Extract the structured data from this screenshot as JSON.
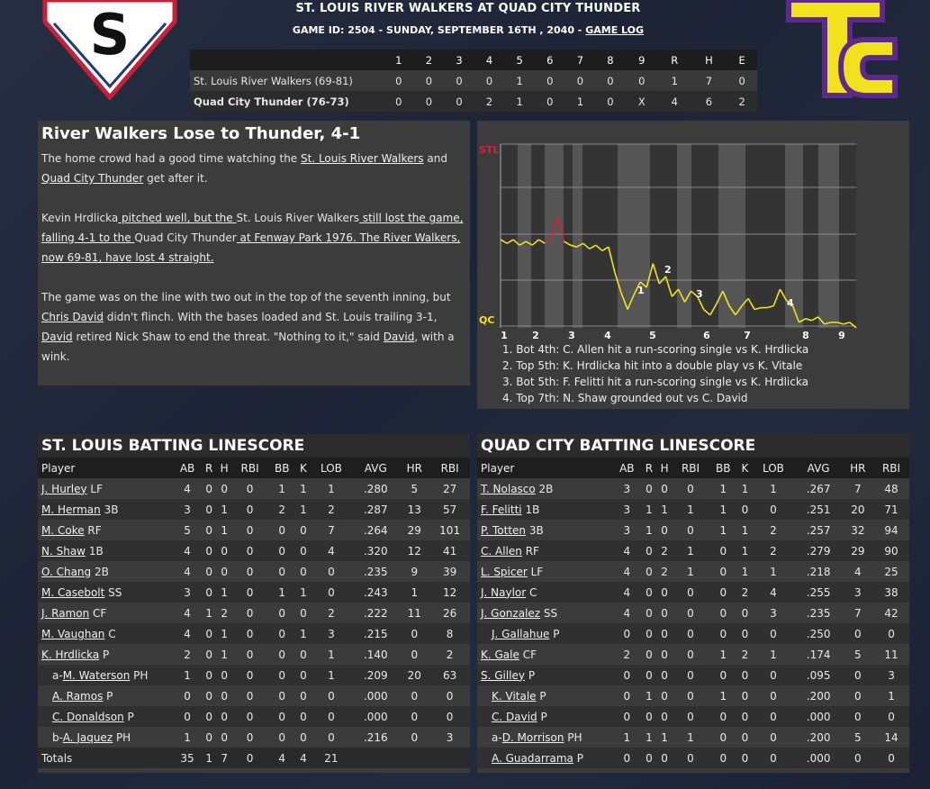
{
  "header": {
    "title": "ST. LOUIS RIVER WALKERS AT QUAD CITY THUNDER",
    "game_info": "GAME ID: 2504 - SUNDAY, SEPTEMBER 16TH , 2040 - ",
    "game_log_link": "GAME LOG",
    "home_logo_letter": "S",
    "away_logo_letters": "TC"
  },
  "linescore": {
    "columns": [
      "1",
      "2",
      "3",
      "4",
      "5",
      "6",
      "7",
      "8",
      "9",
      "R",
      "H",
      "E"
    ],
    "rows": [
      {
        "team": "St. Louis River Walkers (69-81)",
        "cells": [
          "0",
          "0",
          "0",
          "0",
          "1",
          "0",
          "0",
          "0",
          "0",
          "1",
          "7",
          "0"
        ]
      },
      {
        "team": "Quad City Thunder (76-73)",
        "cells": [
          "0",
          "0",
          "0",
          "2",
          "1",
          "0",
          "1",
          "0",
          "X",
          "4",
          "6",
          "2"
        ]
      }
    ]
  },
  "recap": {
    "headline": "River Walkers Lose to Thunder, 4-1",
    "p1": [
      "The home crowd had a good time watching the ",
      "St. Louis River Walkers",
      " and ",
      "Quad City Thunder",
      " get after it."
    ],
    "p2": [
      "Kevin Hrdlicka",
      " pitched well, but the ",
      "St. Louis River Walkers",
      " still lost the game, falling 4-1 to the ",
      "Quad City Thunder",
      " at Fenway Park 1976. The River Walkers, now 69-81, have lost 4 straight."
    ],
    "p3": [
      "The game was on the line with two out in the top of the seventh inning, but ",
      "Chris David",
      " didn't flinch. With the bases loaded and St. Louis trailing 3-1, ",
      "David",
      " retired Nick Shaw to end the threat. \"Nothing to it,\" said ",
      "David",
      ", with a wink."
    ]
  },
  "chart_data": {
    "type": "line",
    "title": "",
    "y_top_label": "STL",
    "y_bottom_label": "QC",
    "x_ticks": [
      "1",
      "2",
      "3",
      "4",
      "5",
      "6",
      "7",
      "8",
      "9"
    ],
    "series": [
      {
        "values": [
          0.48,
          0.46,
          0.48,
          0.45,
          0.47,
          0.45,
          0.48,
          0.46,
          0.49,
          0.6,
          0.47,
          0.45,
          0.44,
          0.46,
          0.43,
          0.45,
          0.42,
          0.44,
          0.3,
          0.19,
          0.1,
          0.18,
          0.25,
          0.22,
          0.35,
          0.24,
          0.28,
          0.17,
          0.21,
          0.14,
          0.2,
          0.17,
          0.1,
          0.07,
          0.13,
          0.2,
          0.12,
          0.07,
          0.12,
          0.16,
          0.1,
          0.11,
          0.11,
          0.12,
          0.21,
          0.15,
          0.12,
          0.03,
          0.05,
          0.04,
          0.06,
          0.02,
          0.03,
          0.03,
          0.02,
          0.03,
          0.0
        ]
      }
    ],
    "annotations": [
      "1",
      "2",
      "3",
      "4"
    ],
    "notes": [
      "1. Bot 4th: C. Allen hit a run-scoring single vs K. Hrdlicka",
      "2. Top 5th: K. Hrdlicka hit into a double play vs K. Vitale",
      "3. Bot 5th: F. Felitti hit a run-scoring single vs K. Hrdlicka",
      "4. Top 7th: N. Shaw grounded out vs C. David"
    ],
    "colors": {
      "stl": "#d8213a",
      "qc": "#f2e21d"
    }
  },
  "stl": {
    "title": "ST. LOUIS BATTING LINESCORE",
    "columns": [
      "Player",
      "AB",
      "R",
      "H",
      "RBI",
      "BB",
      "K",
      "LOB",
      "AVG",
      "HR",
      "RBI"
    ],
    "rows": [
      {
        "prefix": "",
        "name": "J. Hurley",
        "pos": " LF",
        "sub": false,
        "s": [
          "4",
          "0",
          "0",
          "0",
          "1",
          "1",
          "1",
          ".280",
          "5",
          "27"
        ]
      },
      {
        "prefix": "",
        "name": "M. Herman",
        "pos": " 3B",
        "sub": false,
        "s": [
          "3",
          "0",
          "1",
          "0",
          "2",
          "1",
          "2",
          ".287",
          "13",
          "57"
        ]
      },
      {
        "prefix": "",
        "name": "M. Coke",
        "pos": " RF",
        "sub": false,
        "s": [
          "5",
          "0",
          "1",
          "0",
          "0",
          "0",
          "7",
          ".264",
          "29",
          "101"
        ]
      },
      {
        "prefix": "",
        "name": "N. Shaw",
        "pos": " 1B",
        "sub": false,
        "s": [
          "4",
          "0",
          "0",
          "0",
          "0",
          "0",
          "4",
          ".320",
          "12",
          "41"
        ]
      },
      {
        "prefix": "",
        "name": "O. Chang",
        "pos": " 2B",
        "sub": false,
        "s": [
          "4",
          "0",
          "0",
          "0",
          "0",
          "0",
          "0",
          ".235",
          "9",
          "39"
        ]
      },
      {
        "prefix": "",
        "name": "M. Casebolt",
        "pos": " SS",
        "sub": false,
        "s": [
          "3",
          "0",
          "1",
          "0",
          "1",
          "1",
          "0",
          ".243",
          "1",
          "12"
        ]
      },
      {
        "prefix": "",
        "name": "J. Ramon",
        "pos": " CF",
        "sub": false,
        "s": [
          "4",
          "1",
          "2",
          "0",
          "0",
          "0",
          "2",
          ".222",
          "11",
          "26"
        ]
      },
      {
        "prefix": "",
        "name": "M. Vaughan",
        "pos": " C",
        "sub": false,
        "s": [
          "4",
          "0",
          "1",
          "0",
          "0",
          "1",
          "3",
          ".215",
          "0",
          "8"
        ]
      },
      {
        "prefix": "",
        "name": "K. Hrdlicka",
        "pos": " P",
        "sub": false,
        "s": [
          "2",
          "0",
          "1",
          "0",
          "0",
          "0",
          "1",
          ".140",
          "0",
          "2"
        ]
      },
      {
        "prefix": "a-",
        "name": "M. Waterson",
        "pos": " PH",
        "sub": true,
        "s": [
          "1",
          "0",
          "0",
          "0",
          "0",
          "0",
          "1",
          ".209",
          "20",
          "63"
        ]
      },
      {
        "prefix": "",
        "name": "A. Ramos",
        "pos": " P",
        "sub": true,
        "s": [
          "0",
          "0",
          "0",
          "0",
          "0",
          "0",
          "0",
          ".000",
          "0",
          "0"
        ]
      },
      {
        "prefix": "",
        "name": "C. Donaldson",
        "pos": " P",
        "sub": true,
        "s": [
          "0",
          "0",
          "0",
          "0",
          "0",
          "0",
          "0",
          ".000",
          "0",
          "0"
        ]
      },
      {
        "prefix": "b-",
        "name": "A. Jaquez",
        "pos": " PH",
        "sub": true,
        "s": [
          "1",
          "0",
          "0",
          "0",
          "0",
          "0",
          "0",
          ".216",
          "0",
          "3"
        ]
      }
    ],
    "totals": {
      "label": "Totals",
      "s": [
        "35",
        "1",
        "7",
        "0",
        "4",
        "4",
        "21",
        "",
        "",
        ""
      ]
    }
  },
  "qc": {
    "title": "QUAD CITY BATTING LINESCORE",
    "columns": [
      "Player",
      "AB",
      "R",
      "H",
      "RBI",
      "BB",
      "K",
      "LOB",
      "AVG",
      "HR",
      "RBI"
    ],
    "rows": [
      {
        "prefix": "",
        "name": "T. Nolasco",
        "pos": " 2B",
        "sub": false,
        "s": [
          "3",
          "0",
          "0",
          "0",
          "1",
          "1",
          "1",
          ".267",
          "7",
          "48"
        ]
      },
      {
        "prefix": "",
        "name": "F. Felitti",
        "pos": " 1B",
        "sub": false,
        "s": [
          "3",
          "1",
          "1",
          "1",
          "1",
          "0",
          "0",
          ".251",
          "20",
          "71"
        ]
      },
      {
        "prefix": "",
        "name": "P. Totten",
        "pos": " 3B",
        "sub": false,
        "s": [
          "3",
          "1",
          "0",
          "0",
          "1",
          "1",
          "2",
          ".257",
          "32",
          "94"
        ]
      },
      {
        "prefix": "",
        "name": "C. Allen",
        "pos": " RF",
        "sub": false,
        "s": [
          "4",
          "0",
          "2",
          "1",
          "0",
          "1",
          "2",
          ".279",
          "29",
          "90"
        ]
      },
      {
        "prefix": "",
        "name": "L. Spicer",
        "pos": " LF",
        "sub": false,
        "s": [
          "4",
          "0",
          "2",
          "1",
          "0",
          "1",
          "1",
          ".218",
          "4",
          "25"
        ]
      },
      {
        "prefix": "",
        "name": "J. Naylor",
        "pos": " C",
        "sub": false,
        "s": [
          "4",
          "0",
          "0",
          "0",
          "0",
          "2",
          "4",
          ".255",
          "3",
          "38"
        ]
      },
      {
        "prefix": "",
        "name": "J. Gonzalez",
        "pos": " SS",
        "sub": false,
        "s": [
          "4",
          "0",
          "0",
          "0",
          "0",
          "0",
          "3",
          ".235",
          "7",
          "42"
        ]
      },
      {
        "prefix": "",
        "name": "J. Gallahue",
        "pos": " P",
        "sub": true,
        "s": [
          "0",
          "0",
          "0",
          "0",
          "0",
          "0",
          "0",
          ".250",
          "0",
          "0"
        ]
      },
      {
        "prefix": "",
        "name": "K. Gale",
        "pos": " CF",
        "sub": false,
        "s": [
          "2",
          "0",
          "0",
          "0",
          "1",
          "2",
          "1",
          ".174",
          "5",
          "11"
        ]
      },
      {
        "prefix": "",
        "name": "S. Gilley",
        "pos": " P",
        "sub": false,
        "s": [
          "0",
          "0",
          "0",
          "0",
          "0",
          "0",
          "0",
          ".095",
          "0",
          "3"
        ]
      },
      {
        "prefix": "",
        "name": "K. Vitale",
        "pos": " P",
        "sub": true,
        "s": [
          "0",
          "1",
          "0",
          "0",
          "1",
          "0",
          "0",
          ".200",
          "0",
          "1"
        ]
      },
      {
        "prefix": "",
        "name": "C. David",
        "pos": " P",
        "sub": true,
        "s": [
          "0",
          "0",
          "0",
          "0",
          "0",
          "0",
          "0",
          ".000",
          "0",
          "0"
        ]
      },
      {
        "prefix": "a-",
        "name": "D. Morrison",
        "pos": " PH",
        "sub": true,
        "s": [
          "1",
          "1",
          "1",
          "1",
          "0",
          "0",
          "0",
          ".200",
          "5",
          "14"
        ]
      },
      {
        "prefix": "",
        "name": "A. Guadarrama",
        "pos": " P",
        "sub": true,
        "s": [
          "0",
          "0",
          "0",
          "0",
          "0",
          "0",
          "0",
          ".000",
          "0",
          "0"
        ]
      }
    ]
  }
}
